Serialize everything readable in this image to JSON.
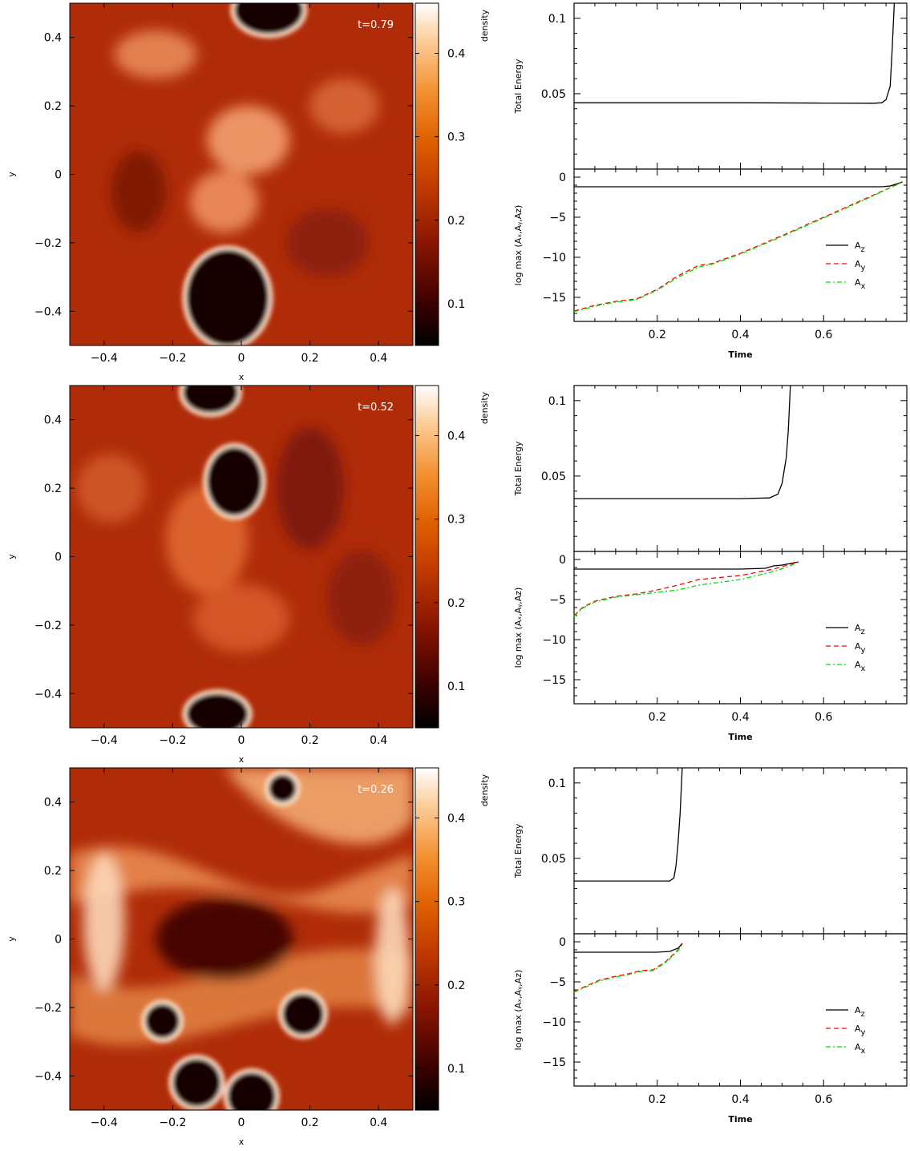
{
  "colormap": {
    "label": "density",
    "ticks": [
      "0.1",
      "0.2",
      "0.3",
      "0.4"
    ],
    "stops": [
      "#000000",
      "#3a0000",
      "#8a1500",
      "#c03a00",
      "#e06000",
      "#f39030",
      "#fcc890",
      "#ffffff"
    ]
  },
  "colors": {
    "az": "#000000",
    "ay": "#ff0000",
    "ax": "#00e000"
  },
  "panels": [
    {
      "time_label": "t=0.79",
      "map": {
        "xlabel": "x",
        "ylabel": "y",
        "xticks": [
          "−0.4",
          "−0.2",
          "0",
          "0.2",
          "0.4"
        ],
        "yticks": [
          "−0.4",
          "−0.2",
          "0",
          "0.2",
          "0.4"
        ]
      },
      "energy": {
        "ylabel": "Total Energy",
        "yticks": [
          "0.05",
          "0.1"
        ]
      },
      "amp": {
        "ylabel": "log max (Aₓ,Aᵧ,A_z)",
        "yticks": [
          "0",
          "−5",
          "−10",
          "−15"
        ],
        "xticks": [
          "0.2",
          "0.4",
          "0.6"
        ],
        "xlabel": "Time"
      },
      "legend": [
        "A_z",
        "A_y",
        "A_x"
      ]
    },
    {
      "time_label": "t=0.52",
      "map": {
        "xlabel": "x",
        "ylabel": "y",
        "xticks": [
          "−0.4",
          "−0.2",
          "0",
          "0.2",
          "0.4"
        ],
        "yticks": [
          "−0.4",
          "−0.2",
          "0",
          "0.2",
          "0.4"
        ]
      },
      "energy": {
        "ylabel": "Total Energy",
        "yticks": [
          "0.05",
          "0.1"
        ]
      },
      "amp": {
        "ylabel": "log max (Aₓ,Aᵧ,A_z)",
        "yticks": [
          "0",
          "−5",
          "−10",
          "−15"
        ],
        "xticks": [
          "0.2",
          "0.4",
          "0.6"
        ],
        "xlabel": "Time"
      },
      "legend": [
        "A_z",
        "A_y",
        "A_x"
      ]
    },
    {
      "time_label": "t=0.26",
      "map": {
        "xlabel": "x",
        "ylabel": "y",
        "xticks": [
          "−0.4",
          "−0.2",
          "0",
          "0.2",
          "0.4"
        ],
        "yticks": [
          "−0.4",
          "−0.2",
          "0",
          "0.2",
          "0.4"
        ]
      },
      "energy": {
        "ylabel": "Total Energy",
        "yticks": [
          "0.05",
          "0.1"
        ]
      },
      "amp": {
        "ylabel": "log max (Aₓ,Aᵧ,A_z)",
        "yticks": [
          "0",
          "−5",
          "−10",
          "−15"
        ],
        "xticks": [
          "0.2",
          "0.4",
          "0.6"
        ],
        "xlabel": "Time"
      },
      "legend": [
        "A_z",
        "A_y",
        "A_x"
      ]
    }
  ],
  "chart_data": [
    {
      "type": "line",
      "panel": "t=0.79",
      "xlabel": "Time",
      "ylabel": "Total Energy",
      "xlim": [
        0.0,
        0.8
      ],
      "ylim": [
        0.0,
        0.11
      ],
      "series": [
        {
          "name": "",
          "x": [
            0.0,
            0.2,
            0.4,
            0.6,
            0.72,
            0.74,
            0.75,
            0.76,
            0.765,
            0.77
          ],
          "y": [
            0.044,
            0.044,
            0.044,
            0.0438,
            0.0437,
            0.044,
            0.046,
            0.055,
            0.08,
            0.11
          ]
        }
      ]
    },
    {
      "type": "line",
      "panel": "t=0.79",
      "xlabel": "Time",
      "ylabel": "log max (A_x,A_y,A_z)",
      "xlim": [
        0.0,
        0.8
      ],
      "ylim": [
        -18,
        1
      ],
      "series": [
        {
          "name": "A_z",
          "x": [
            0.0,
            0.2,
            0.4,
            0.6,
            0.74,
            0.76,
            0.79
          ],
          "y": [
            -1.2,
            -1.2,
            -1.2,
            -1.2,
            -1.2,
            -1.1,
            -0.6
          ]
        },
        {
          "name": "A_y",
          "x": [
            0.0,
            0.05,
            0.1,
            0.15,
            0.2,
            0.25,
            0.3,
            0.33,
            0.4,
            0.5,
            0.6,
            0.7,
            0.79
          ],
          "y": [
            -16.7,
            -16.0,
            -15.5,
            -15.2,
            -14.0,
            -12.3,
            -11.0,
            -10.8,
            -9.5,
            -7.3,
            -5.0,
            -2.7,
            -0.6
          ]
        },
        {
          "name": "A_x",
          "x": [
            0.0,
            0.05,
            0.1,
            0.15,
            0.2,
            0.25,
            0.3,
            0.33,
            0.4,
            0.5,
            0.6,
            0.7,
            0.79
          ],
          "y": [
            -16.8,
            -16.1,
            -15.6,
            -15.3,
            -14.1,
            -12.5,
            -11.2,
            -10.9,
            -9.6,
            -7.4,
            -5.1,
            -2.8,
            -0.6
          ]
        }
      ]
    },
    {
      "type": "line",
      "panel": "t=0.52",
      "xlabel": "Time",
      "ylabel": "Total Energy",
      "xlim": [
        0.0,
        0.8
      ],
      "ylim": [
        0.0,
        0.11
      ],
      "series": [
        {
          "name": "",
          "x": [
            0.0,
            0.2,
            0.4,
            0.47,
            0.49,
            0.5,
            0.51,
            0.515,
            0.52
          ],
          "y": [
            0.035,
            0.035,
            0.035,
            0.0355,
            0.038,
            0.045,
            0.062,
            0.08,
            0.11
          ]
        }
      ]
    },
    {
      "type": "line",
      "panel": "t=0.52",
      "xlabel": "Time",
      "ylabel": "log max (A_x,A_y,A_z)",
      "xlim": [
        0.0,
        0.8
      ],
      "ylim": [
        -18,
        1
      ],
      "series": [
        {
          "name": "A_z",
          "x": [
            0.0,
            0.2,
            0.4,
            0.46,
            0.48,
            0.5,
            0.52,
            0.54
          ],
          "y": [
            -1.2,
            -1.2,
            -1.2,
            -1.1,
            -0.8,
            -0.7,
            -0.5,
            -0.3
          ]
        },
        {
          "name": "A_y",
          "x": [
            0.0,
            0.02,
            0.05,
            0.1,
            0.15,
            0.2,
            0.25,
            0.3,
            0.4,
            0.48,
            0.52,
            0.54
          ],
          "y": [
            -7.0,
            -6.0,
            -5.2,
            -4.6,
            -4.3,
            -3.8,
            -3.2,
            -2.5,
            -2.0,
            -1.2,
            -0.6,
            -0.3
          ]
        },
        {
          "name": "A_x",
          "x": [
            0.0,
            0.02,
            0.05,
            0.1,
            0.15,
            0.2,
            0.25,
            0.3,
            0.4,
            0.48,
            0.52,
            0.54
          ],
          "y": [
            -7.1,
            -6.1,
            -5.3,
            -4.7,
            -4.4,
            -4.1,
            -3.8,
            -3.2,
            -2.5,
            -1.5,
            -0.8,
            -0.3
          ]
        }
      ]
    },
    {
      "type": "line",
      "panel": "t=0.26",
      "xlabel": "Time",
      "ylabel": "Total Energy",
      "xlim": [
        0.0,
        0.8
      ],
      "ylim": [
        0.0,
        0.11
      ],
      "series": [
        {
          "name": "",
          "x": [
            0.0,
            0.1,
            0.2,
            0.23,
            0.24,
            0.245,
            0.25,
            0.255,
            0.26
          ],
          "y": [
            0.035,
            0.035,
            0.035,
            0.035,
            0.037,
            0.045,
            0.06,
            0.08,
            0.11
          ]
        }
      ]
    },
    {
      "type": "line",
      "panel": "t=0.26",
      "xlabel": "Time",
      "ylabel": "log max (A_x,A_y,A_z)",
      "xlim": [
        0.0,
        0.8
      ],
      "ylim": [
        -18,
        1
      ],
      "series": [
        {
          "name": "A_z",
          "x": [
            0.0,
            0.1,
            0.2,
            0.23,
            0.25,
            0.26
          ],
          "y": [
            -1.3,
            -1.3,
            -1.3,
            -1.2,
            -0.8,
            -0.2
          ]
        },
        {
          "name": "A_y",
          "x": [
            0.0,
            0.03,
            0.06,
            0.1,
            0.13,
            0.16,
            0.19,
            0.22,
            0.25,
            0.26
          ],
          "y": [
            -6.2,
            -5.5,
            -4.8,
            -4.3,
            -4.0,
            -3.6,
            -3.5,
            -2.5,
            -1.0,
            -0.3
          ]
        },
        {
          "name": "A_x",
          "x": [
            0.0,
            0.03,
            0.06,
            0.1,
            0.13,
            0.16,
            0.19,
            0.22,
            0.25,
            0.26
          ],
          "y": [
            -6.3,
            -5.6,
            -4.9,
            -4.4,
            -4.1,
            -3.7,
            -3.6,
            -2.6,
            -1.1,
            -0.3
          ]
        }
      ]
    }
  ]
}
